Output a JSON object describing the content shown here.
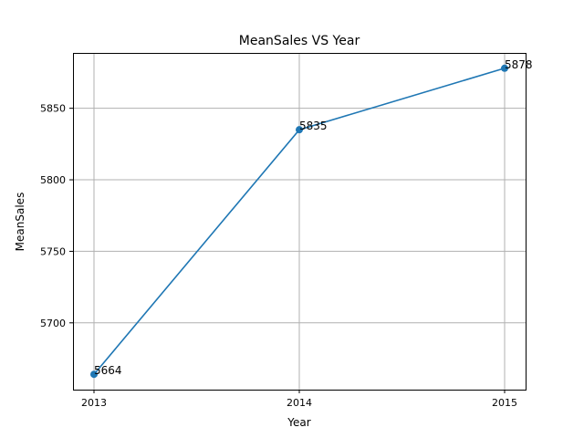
{
  "chart_data": {
    "type": "line",
    "title": "MeanSales VS Year",
    "xlabel": "Year",
    "ylabel": "MeanSales",
    "categories": [
      "2013",
      "2014",
      "2015"
    ],
    "series": [
      {
        "values": [
          5664,
          5835,
          5878
        ],
        "color": "#1f77b4"
      }
    ],
    "data_labels": [
      "5664",
      "5835",
      "5878"
    ],
    "yticks": [
      5700,
      5750,
      5800,
      5850
    ],
    "ylim": [
      5653.3,
      5888.7
    ],
    "grid": true,
    "marker": "circle"
  }
}
